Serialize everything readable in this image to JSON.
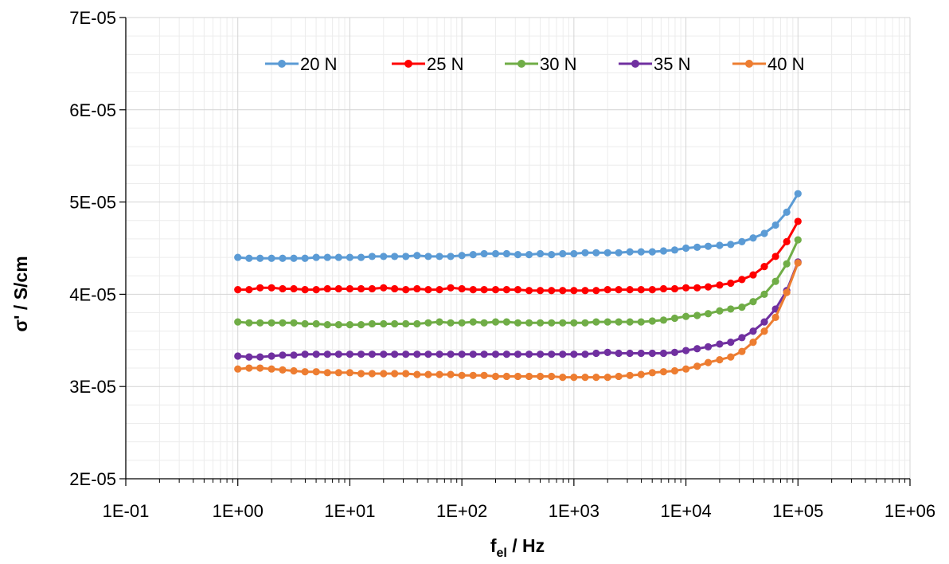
{
  "chart_data": {
    "type": "line",
    "xlabel": {
      "main": "f",
      "sub": "el",
      "rest": " / Hz"
    },
    "ylabel": "σ' / S/cm",
    "x_scale": "log",
    "xlim": [
      0.1,
      1000000
    ],
    "ylim": [
      2e-05,
      7e-05
    ],
    "x_ticks": [
      {
        "value": 0.1,
        "label": "1E-01"
      },
      {
        "value": 1,
        "label": "1E+00"
      },
      {
        "value": 10,
        "label": "1E+01"
      },
      {
        "value": 100,
        "label": "1E+02"
      },
      {
        "value": 1000,
        "label": "1E+03"
      },
      {
        "value": 10000,
        "label": "1E+04"
      },
      {
        "value": 100000,
        "label": "1E+05"
      },
      {
        "value": 1000000,
        "label": "1E+06"
      }
    ],
    "y_ticks": [
      {
        "value": 2e-05,
        "label": "2E-05"
      },
      {
        "value": 3e-05,
        "label": "3E-05"
      },
      {
        "value": 4e-05,
        "label": "4E-05"
      },
      {
        "value": 5e-05,
        "label": "5E-05"
      },
      {
        "value": 6e-05,
        "label": "6E-05"
      },
      {
        "value": 7e-05,
        "label": "7E-05"
      }
    ],
    "grid": true,
    "legend_position": "top-center",
    "x": [
      1,
      1.26,
      1.58,
      2,
      2.51,
      3.16,
      3.98,
      5.01,
      6.31,
      7.94,
      10,
      12.6,
      15.8,
      20,
      25.1,
      31.6,
      39.8,
      50.1,
      63.1,
      79.4,
      100,
      126,
      158,
      200,
      251,
      316,
      398,
      501,
      631,
      794,
      1000,
      1260,
      1580,
      2000,
      2510,
      3160,
      3980,
      5010,
      6310,
      7940,
      10000,
      12600,
      15800,
      20000,
      25100,
      31600,
      39800,
      50100,
      63100,
      79400,
      100000
    ],
    "series": [
      {
        "name": "20 N",
        "color": "#5b9bd5",
        "values": [
          4.4e-05,
          4.39e-05,
          4.39e-05,
          4.39e-05,
          4.39e-05,
          4.39e-05,
          4.39e-05,
          4.4e-05,
          4.4e-05,
          4.4e-05,
          4.4e-05,
          4.4e-05,
          4.41e-05,
          4.41e-05,
          4.41e-05,
          4.41e-05,
          4.42e-05,
          4.41e-05,
          4.41e-05,
          4.41e-05,
          4.42e-05,
          4.43e-05,
          4.44e-05,
          4.44e-05,
          4.44e-05,
          4.43e-05,
          4.43e-05,
          4.44e-05,
          4.43e-05,
          4.44e-05,
          4.44e-05,
          4.45e-05,
          4.45e-05,
          4.45e-05,
          4.45e-05,
          4.46e-05,
          4.46e-05,
          4.46e-05,
          4.47e-05,
          4.48e-05,
          4.5e-05,
          4.51e-05,
          4.52e-05,
          4.53e-05,
          4.54e-05,
          4.57e-05,
          4.61e-05,
          4.66e-05,
          4.75e-05,
          4.89e-05,
          5.09e-05
        ]
      },
      {
        "name": "25 N",
        "color": "#ff0000",
        "values": [
          4.05e-05,
          4.05e-05,
          4.07e-05,
          4.07e-05,
          4.06e-05,
          4.06e-05,
          4.05e-05,
          4.05e-05,
          4.06e-05,
          4.06e-05,
          4.06e-05,
          4.06e-05,
          4.06e-05,
          4.07e-05,
          4.06e-05,
          4.05e-05,
          4.06e-05,
          4.05e-05,
          4.05e-05,
          4.07e-05,
          4.06e-05,
          4.05e-05,
          4.05e-05,
          4.05e-05,
          4.05e-05,
          4.05e-05,
          4.04e-05,
          4.04e-05,
          4.04e-05,
          4.04e-05,
          4.04e-05,
          4.04e-05,
          4.04e-05,
          4.05e-05,
          4.05e-05,
          4.05e-05,
          4.05e-05,
          4.05e-05,
          4.06e-05,
          4.06e-05,
          4.07e-05,
          4.07e-05,
          4.08e-05,
          4.1e-05,
          4.12e-05,
          4.16e-05,
          4.21e-05,
          4.3e-05,
          4.41e-05,
          4.57e-05,
          4.79e-05
        ]
      },
      {
        "name": "30 N",
        "color": "#70ad47",
        "values": [
          3.7e-05,
          3.69e-05,
          3.69e-05,
          3.69e-05,
          3.69e-05,
          3.69e-05,
          3.68e-05,
          3.68e-05,
          3.67e-05,
          3.67e-05,
          3.67e-05,
          3.67e-05,
          3.68e-05,
          3.68e-05,
          3.68e-05,
          3.68e-05,
          3.68e-05,
          3.69e-05,
          3.7e-05,
          3.69e-05,
          3.69e-05,
          3.7e-05,
          3.69e-05,
          3.7e-05,
          3.7e-05,
          3.69e-05,
          3.69e-05,
          3.69e-05,
          3.69e-05,
          3.69e-05,
          3.69e-05,
          3.69e-05,
          3.7e-05,
          3.7e-05,
          3.7e-05,
          3.7e-05,
          3.7e-05,
          3.71e-05,
          3.72e-05,
          3.74e-05,
          3.76e-05,
          3.77e-05,
          3.79e-05,
          3.82e-05,
          3.84e-05,
          3.86e-05,
          3.92e-05,
          4e-05,
          4.14e-05,
          4.33e-05,
          4.59e-05
        ]
      },
      {
        "name": "35 N",
        "color": "#7030a0",
        "values": [
          3.33e-05,
          3.32e-05,
          3.32e-05,
          3.33e-05,
          3.34e-05,
          3.34e-05,
          3.35e-05,
          3.35e-05,
          3.35e-05,
          3.35e-05,
          3.35e-05,
          3.35e-05,
          3.35e-05,
          3.35e-05,
          3.35e-05,
          3.35e-05,
          3.35e-05,
          3.35e-05,
          3.35e-05,
          3.35e-05,
          3.35e-05,
          3.35e-05,
          3.35e-05,
          3.35e-05,
          3.35e-05,
          3.35e-05,
          3.35e-05,
          3.35e-05,
          3.35e-05,
          3.35e-05,
          3.35e-05,
          3.35e-05,
          3.36e-05,
          3.37e-05,
          3.36e-05,
          3.36e-05,
          3.36e-05,
          3.36e-05,
          3.36e-05,
          3.37e-05,
          3.39e-05,
          3.41e-05,
          3.43e-05,
          3.46e-05,
          3.48e-05,
          3.53e-05,
          3.6e-05,
          3.7e-05,
          3.84e-05,
          4.04e-05,
          4.35e-05
        ]
      },
      {
        "name": "40 N",
        "color": "#ed7d31",
        "values": [
          3.19e-05,
          3.2e-05,
          3.2e-05,
          3.19e-05,
          3.18e-05,
          3.17e-05,
          3.16e-05,
          3.16e-05,
          3.15e-05,
          3.15e-05,
          3.15e-05,
          3.14e-05,
          3.14e-05,
          3.14e-05,
          3.14e-05,
          3.14e-05,
          3.13e-05,
          3.13e-05,
          3.13e-05,
          3.13e-05,
          3.12e-05,
          3.12e-05,
          3.12e-05,
          3.11e-05,
          3.11e-05,
          3.11e-05,
          3.11e-05,
          3.11e-05,
          3.11e-05,
          3.1e-05,
          3.1e-05,
          3.1e-05,
          3.1e-05,
          3.1e-05,
          3.11e-05,
          3.12e-05,
          3.13e-05,
          3.15e-05,
          3.16e-05,
          3.17e-05,
          3.19e-05,
          3.22e-05,
          3.26e-05,
          3.29e-05,
          3.32e-05,
          3.38e-05,
          3.48e-05,
          3.6e-05,
          3.75e-05,
          4.02e-05,
          4.34e-05
        ]
      }
    ]
  }
}
